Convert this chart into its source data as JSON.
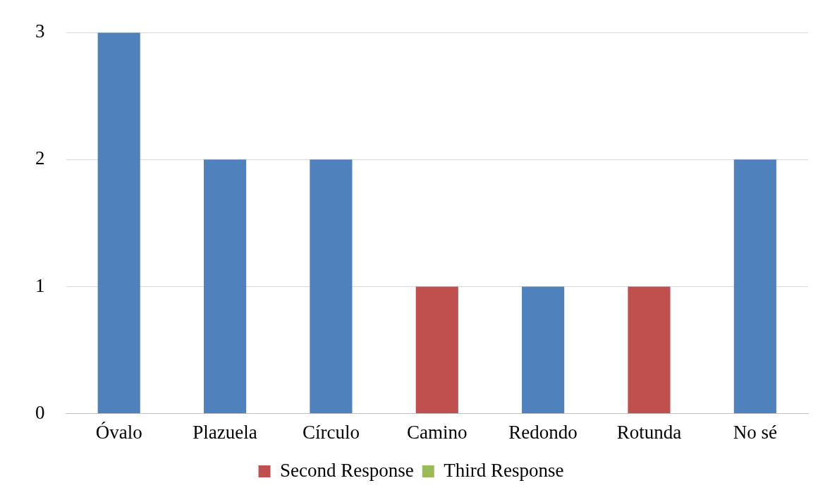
{
  "chart_data": {
    "type": "bar",
    "stacked": true,
    "categories": [
      "Óvalo",
      "Plazuela",
      "Círculo",
      "Camino",
      "Redondo",
      "Rotunda",
      "No sé"
    ],
    "series": [
      {
        "color": "#4f81bd",
        "values": [
          3,
          2,
          2,
          null,
          1,
          null,
          2
        ]
      },
      {
        "name": "Second Response",
        "color": "#c0504d",
        "values": [
          null,
          null,
          null,
          1,
          null,
          1,
          null
        ]
      },
      {
        "name": "Third Response",
        "color": "#9bbb59",
        "values": [
          null,
          null,
          null,
          null,
          null,
          null,
          null
        ]
      }
    ],
    "ylim": [
      0,
      3
    ],
    "yticks": [
      0,
      1,
      2,
      3
    ],
    "grid": "y",
    "legend": "bottom"
  }
}
